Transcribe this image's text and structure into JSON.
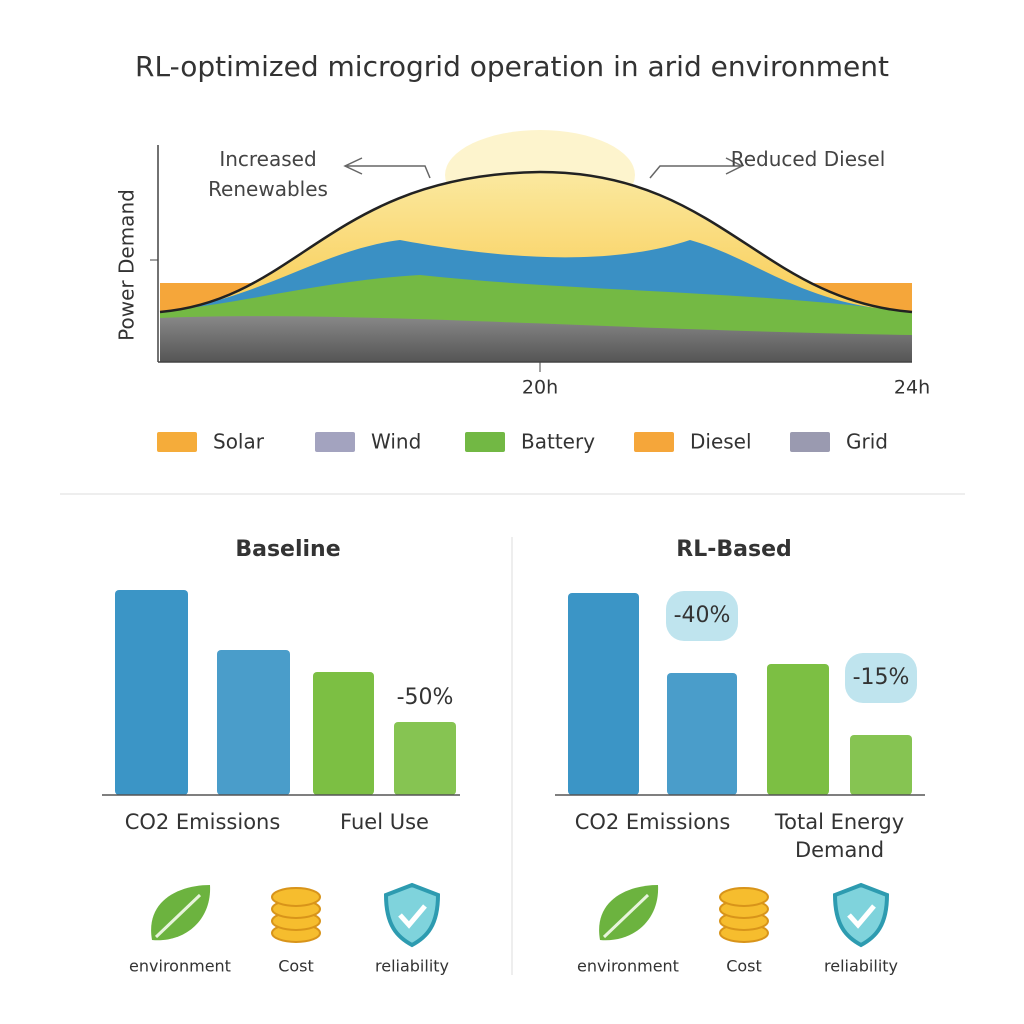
{
  "title": "RL-optimized microgrid operation in arid environment",
  "profile": {
    "y_label": "Power Demand",
    "x_labels": [
      "20h",
      "24h"
    ],
    "annotations": [
      "Increased Renewables",
      "Reduced Diesel"
    ],
    "legend": [
      {
        "name": "Solar",
        "color": "#f5ac3a"
      },
      {
        "name": "Wind",
        "color": "#a3a3bf"
      },
      {
        "name": "Battery",
        "color": "#72b844"
      },
      {
        "name": "Diesel",
        "color": "#f5a63a"
      },
      {
        "name": "Grid",
        "color": "#9a9ab0"
      }
    ]
  },
  "chart_data": [
    {
      "type": "bar",
      "title": "Baseline",
      "categories": [
        "CO2 Emissions",
        "Fuel Use"
      ],
      "colors": [
        "#3b95c6",
        "#7cbf43"
      ],
      "values": [
        [
          205,
          145
        ],
        [
          123,
          73
        ]
      ],
      "annotations": [
        {
          "category": 1,
          "text": "-50%"
        }
      ],
      "ylim": [
        0,
        210
      ],
      "badges": [
        "environment",
        "Cost",
        "reliability"
      ]
    },
    {
      "type": "bar",
      "title": "RL-Based",
      "categories": [
        "CO2 Emissions",
        "Total Energy Demand"
      ],
      "colors": [
        "#3b95c6",
        "#7cbf43"
      ],
      "values": [
        [
          202,
          122
        ],
        [
          131,
          60
        ]
      ],
      "annotations": [
        {
          "category": 0,
          "text": "-40%"
        },
        {
          "category": 1,
          "text": "-15%"
        }
      ],
      "ylim": [
        0,
        210
      ],
      "badges": [
        "environment",
        "Cost",
        "reliability"
      ]
    }
  ]
}
